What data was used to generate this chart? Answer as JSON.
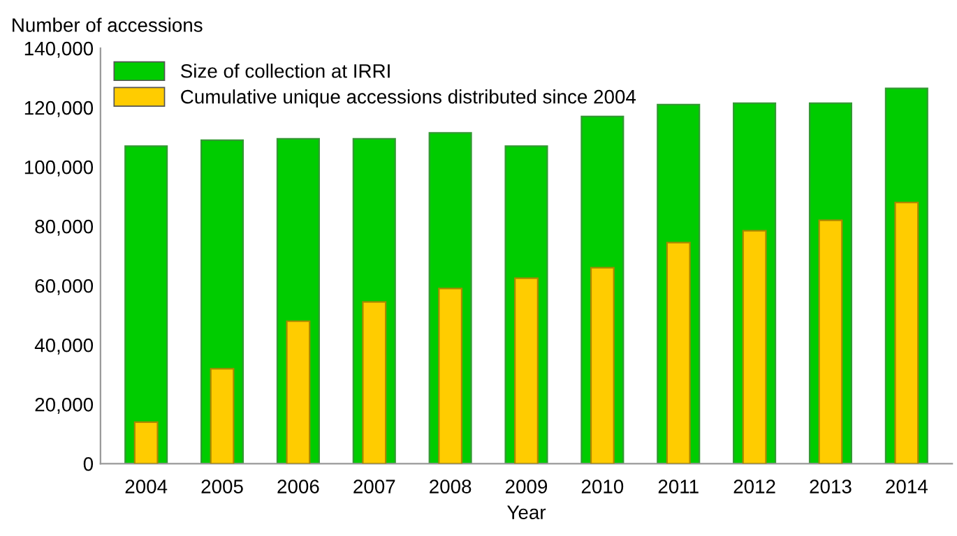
{
  "chart_data": {
    "type": "bar",
    "xlabel": "Year",
    "ylabel": "Number of accessions",
    "categories": [
      "2004",
      "2005",
      "2006",
      "2007",
      "2008",
      "2009",
      "2010",
      "2011",
      "2012",
      "2013",
      "2014"
    ],
    "series": [
      {
        "name": "Size of collection at IRRI",
        "color": "#00cc00",
        "values": [
          107000,
          109000,
          109500,
          109500,
          111500,
          107000,
          117000,
          121000,
          121500,
          121500,
          126500
        ]
      },
      {
        "name": "Cumulative unique accessions distributed since 2004",
        "color": "#ffcc00",
        "values": [
          14000,
          32000,
          48000,
          54500,
          59000,
          62500,
          66000,
          74500,
          78500,
          82000,
          88000
        ]
      }
    ],
    "ylim": [
      0,
      140000
    ],
    "yticks": [
      {
        "value": 0,
        "label": "0"
      },
      {
        "value": 20000,
        "label": "20,000"
      },
      {
        "value": 40000,
        "label": "40,000"
      },
      {
        "value": 60000,
        "label": "60,000"
      },
      {
        "value": 80000,
        "label": "80,000"
      },
      {
        "value": 100000,
        "label": "100,000"
      },
      {
        "value": 120000,
        "label": "120,000"
      },
      {
        "value": 140000,
        "label": "140,000"
      }
    ],
    "grid": false,
    "legend": "top left"
  }
}
